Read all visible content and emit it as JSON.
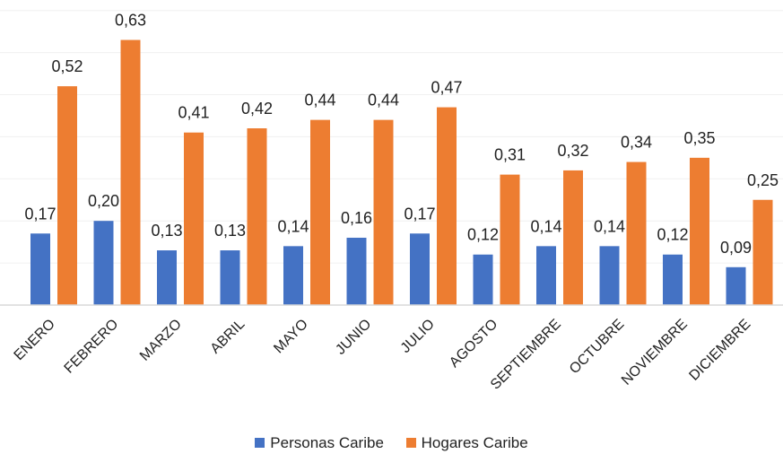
{
  "chart_data": {
    "type": "bar",
    "categories": [
      "ENERO",
      "FEBRERO",
      "MARZO",
      "ABRIL",
      "MAYO",
      "JUNIO",
      "JULIO",
      "AGOSTO",
      "SEPTIEMBRE",
      "OCTUBRE",
      "NOVIEMBRE",
      "DICIEMBRE"
    ],
    "series": [
      {
        "name": "Personas Caribe",
        "color": "#4472C4",
        "values": [
          0.17,
          0.2,
          0.13,
          0.13,
          0.14,
          0.16,
          0.17,
          0.12,
          0.14,
          0.14,
          0.12,
          0.09
        ],
        "labels": [
          "0,17",
          "0,20",
          "0,13",
          "0,13",
          "0,14",
          "0,16",
          "0,17",
          "0,12",
          "0,14",
          "0,14",
          "0,12",
          "0,09"
        ]
      },
      {
        "name": "Hogares Caribe",
        "color": "#ED7D31",
        "values": [
          0.52,
          0.63,
          0.41,
          0.42,
          0.44,
          0.44,
          0.47,
          0.31,
          0.32,
          0.34,
          0.35,
          0.25
        ],
        "labels": [
          "0,52",
          "0,63",
          "0,41",
          "0,42",
          "0,44",
          "0,44",
          "0,47",
          "0,31",
          "0,32",
          "0,34",
          "0,35",
          "0,25"
        ]
      }
    ],
    "title": "",
    "xlabel": "",
    "ylabel": "",
    "ylim": [
      0,
      0.7
    ],
    "grid": true,
    "legend": "bottom"
  }
}
